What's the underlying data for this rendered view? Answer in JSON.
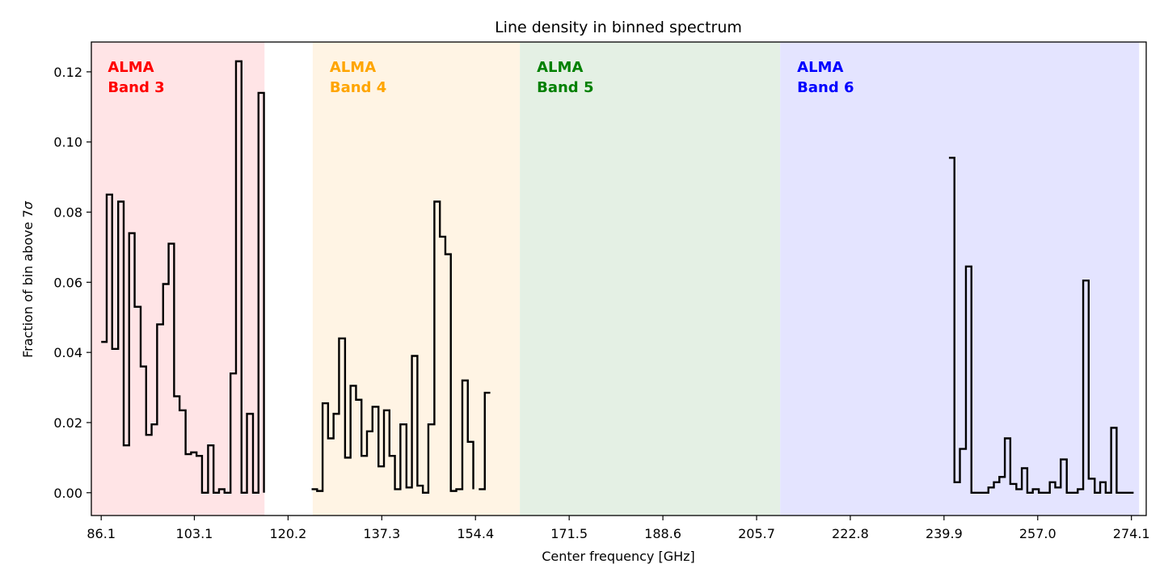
{
  "chart_data": {
    "type": "line",
    "style": "step",
    "title": "Line density in binned spectrum",
    "xlabel": "Center frequency [GHz]",
    "ylabel": "Fraction of bin above 7",
    "ylabel_symbol": "σ",
    "xlim": [
      84.3,
      276.8
    ],
    "ylim": [
      -0.0065,
      0.1285
    ],
    "x_ticks": [
      "86.1",
      "103.1",
      "120.2",
      "137.3",
      "154.4",
      "171.5",
      "188.6",
      "205.7",
      "222.8",
      "239.9",
      "257.0",
      "274.1"
    ],
    "y_ticks": [
      "0.00",
      "0.02",
      "0.04",
      "0.06",
      "0.08",
      "0.10",
      "0.12"
    ],
    "grid": false,
    "bands": [
      {
        "name": "ALMA Band 3",
        "line1": "ALMA",
        "line2": "Band 3",
        "x_range": [
          84.2,
          115.9
        ],
        "fill": "#ffe4e6",
        "label_color": "#ff0000"
      },
      {
        "name": "ALMA Band 4",
        "line1": "ALMA",
        "line2": "Band 4",
        "x_range": [
          124.7,
          162.5
        ],
        "fill": "#fff4e4",
        "label_color": "#ffa500"
      },
      {
        "name": "ALMA Band 5",
        "line1": "ALMA",
        "line2": "Band 5",
        "x_range": [
          162.5,
          210.0
        ],
        "fill": "#e4f0e4",
        "label_color": "#008000"
      },
      {
        "name": "ALMA Band 6",
        "line1": "ALMA",
        "line2": "Band 6",
        "x_range": [
          210.0,
          275.5
        ],
        "fill": "#e4e4ff",
        "label_color": "#0000ff"
      }
    ],
    "series": [
      {
        "color": "#000000",
        "segments": [
          {
            "x": [
              86.1,
              87.1,
              88.1,
              89.2,
              90.2,
              91.2,
              92.2,
              93.3,
              94.3,
              95.3,
              96.3,
              97.4,
              98.4,
              99.4,
              100.4,
              101.5,
              102.5,
              103.5,
              104.5,
              105.6,
              106.6,
              107.6,
              108.6,
              109.7,
              110.7,
              111.7,
              112.7,
              113.8,
              114.8,
              115.8
            ],
            "y": [
              0.043,
              0.085,
              0.041,
              0.083,
              0.0135,
              0.074,
              0.053,
              0.036,
              0.0165,
              0.0195,
              0.048,
              0.0595,
              0.071,
              0.0275,
              0.0235,
              0.011,
              0.0115,
              0.0105,
              0.0,
              0.0135,
              0.0,
              0.001,
              0.0,
              0.034,
              0.123,
              0.0,
              0.0225,
              0.0,
              0.114,
              0.0
            ]
          },
          {
            "x": [
              124.5,
              125.5,
              126.5,
              127.5,
              128.5,
              129.5,
              130.6,
              131.6,
              132.6,
              133.6,
              134.6,
              135.6,
              136.7,
              137.7,
              138.7,
              139.7,
              140.7,
              141.8,
              142.8,
              143.8,
              144.8,
              145.8,
              146.9,
              147.9,
              148.9,
              149.9,
              150.9,
              152.0,
              153.0,
              154.0
            ],
            "y": [
              0.001,
              0.0005,
              0.0255,
              0.0155,
              0.0225,
              0.044,
              0.01,
              0.0305,
              0.0265,
              0.0105,
              0.0175,
              0.0245,
              0.0075,
              0.0235,
              0.0105,
              0.001,
              0.0195,
              0.0015,
              0.039,
              0.002,
              0.0,
              0.0195,
              0.083,
              0.073,
              0.068,
              0.0005,
              0.001,
              0.032,
              0.0145,
              0.001
            ]
          },
          {
            "x": [
              155.0,
              156.1,
              157.1
            ],
            "y": [
              0.001,
              0.0285,
              0.0285
            ]
          },
          {
            "x": [
              240.8,
              241.8,
              242.8,
              243.9,
              244.9,
              245.9,
              246.9,
              248.0,
              249.0,
              250.0,
              251.0,
              252.0,
              253.1,
              254.1,
              255.1,
              256.1,
              257.2,
              258.2,
              259.2,
              260.2,
              261.2,
              262.3,
              263.3,
              264.3,
              265.3,
              266.3,
              267.4,
              268.4,
              269.4,
              270.4,
              271.4,
              272.5,
              273.5,
              274.5
            ],
            "y": [
              0.0955,
              0.003,
              0.0125,
              0.0645,
              0.0,
              0.0,
              0.0,
              0.0015,
              0.003,
              0.0045,
              0.0155,
              0.0025,
              0.001,
              0.007,
              0.0,
              0.001,
              0.0,
              0.0,
              0.003,
              0.0015,
              0.0095,
              0.0,
              0.0,
              0.001,
              0.0605,
              0.004,
              0.0,
              0.003,
              0.0,
              0.0185,
              0.0,
              0.0,
              0.0,
              0.0
            ]
          }
        ]
      }
    ]
  }
}
